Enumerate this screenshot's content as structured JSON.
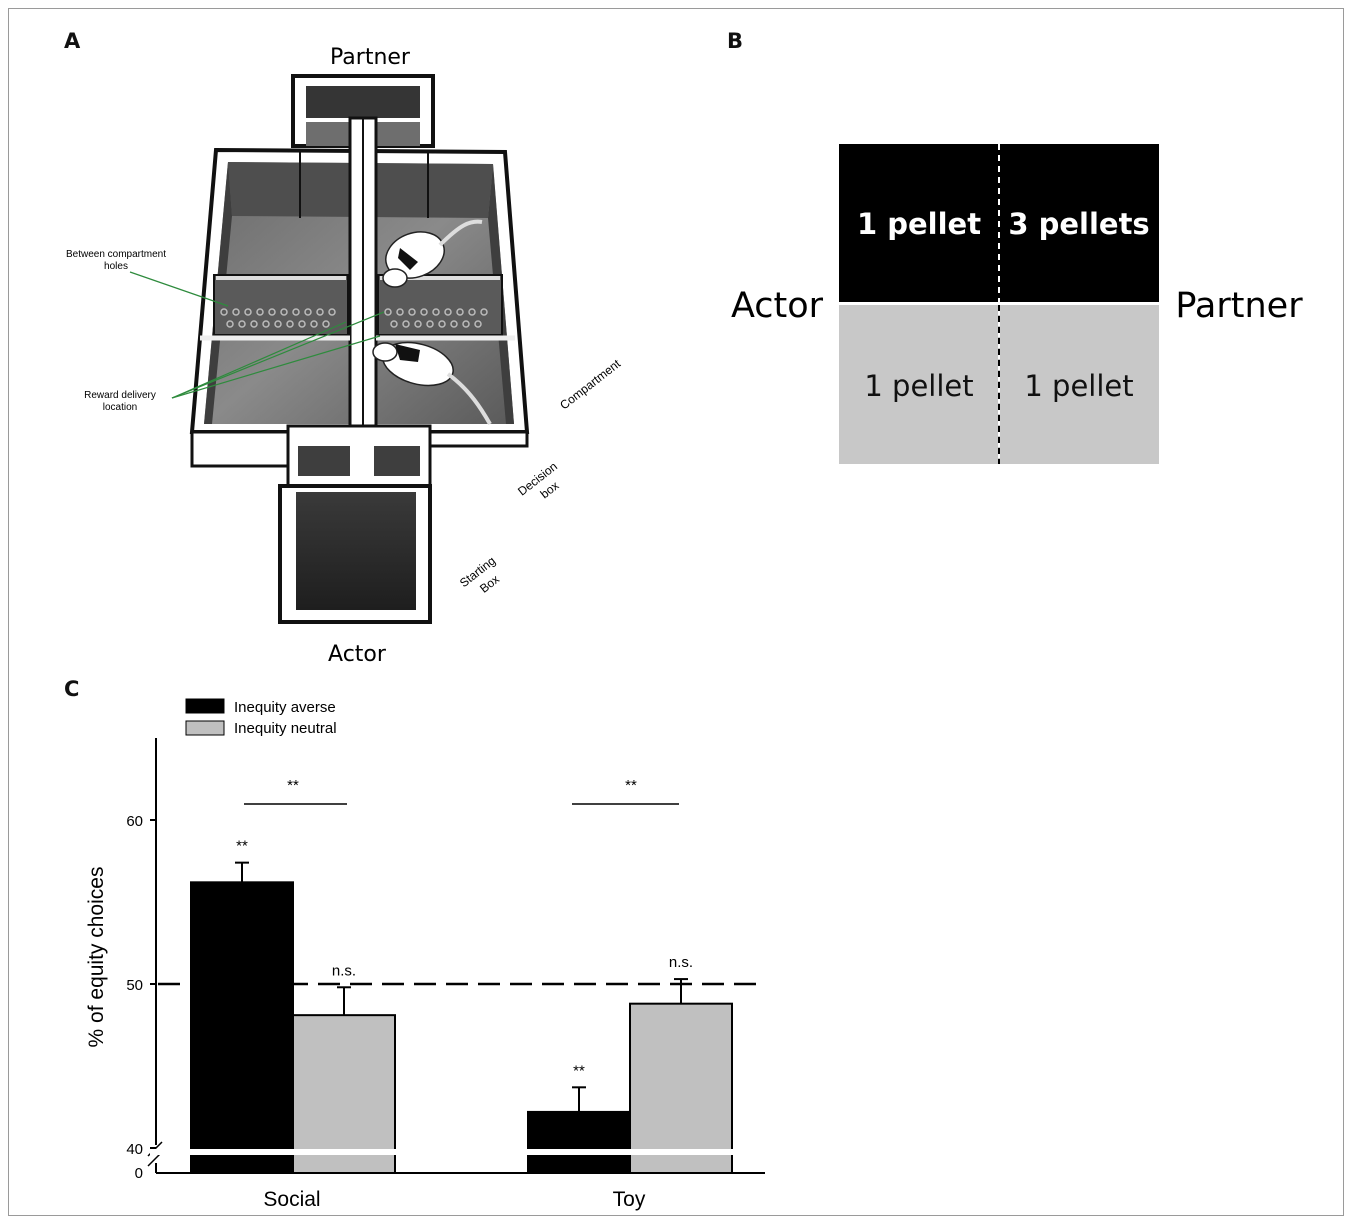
{
  "panels": {
    "a": "A",
    "b": "B",
    "c": "C"
  },
  "panel_a": {
    "top_label": "Partner",
    "bottom_label": "Actor",
    "annotations": {
      "holes_line1": "Between compartment",
      "holes_line2": "holes",
      "reward_line1": "Reward delivery",
      "reward_line2": "location",
      "compartment": "Compartment",
      "decision_line1": "Decision",
      "decision_line2": "box",
      "starting_line1": "Starting",
      "starting_line2": "Box"
    },
    "colors": {
      "annotation_line": "#2e8b3d"
    }
  },
  "panel_b": {
    "left_label": "Actor",
    "right_label": "Partner",
    "top_left": "1 pellet",
    "top_right": "3 pellets",
    "bottom_left": "1 pellet",
    "bottom_right": "1 pellet",
    "colors": {
      "top": "#000000",
      "bottom": "#c8c8c8"
    }
  },
  "chart_data": {
    "type": "bar",
    "categories": [
      "Social",
      "Toy"
    ],
    "ylabel": "% of equity choices",
    "yticks": [
      "60",
      "50",
      "40",
      "0"
    ],
    "ylim": [
      40,
      65
    ],
    "axis_break": true,
    "reference_line": 50,
    "series": [
      {
        "name": "Inequity averse",
        "color": "#000000",
        "values": [
          56.2,
          42.2
        ],
        "errors": [
          1.2,
          1.5
        ],
        "marks": [
          "**",
          "**"
        ]
      },
      {
        "name": "Inequity neutral",
        "color": "#c0c0c0",
        "values": [
          48.1,
          48.8
        ],
        "errors": [
          1.7,
          1.5
        ],
        "marks": [
          "n.s.",
          "n.s."
        ]
      }
    ],
    "comparisons": [
      "**",
      "**"
    ],
    "legend_position": "top-left"
  }
}
